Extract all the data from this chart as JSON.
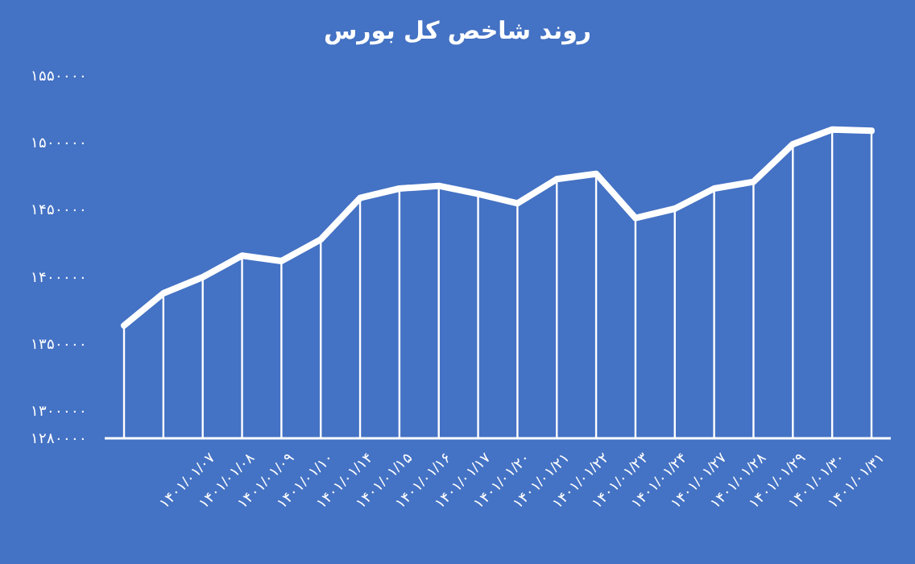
{
  "chart_data": {
    "type": "line",
    "title": "روند شاخص کل بورس",
    "categories": [
      null,
      null,
      "۱۴۰۱/۰۱/۰۷",
      "۱۴۰۱/۰۱/۰۸",
      "۱۴۰۱/۰۱/۰۹",
      "۱۴۰۱/۰۱/۱۰",
      "۱۴۰۱/۰۱/۱۴",
      "۱۴۰۱/۰۱/۱۵",
      "۱۴۰۱/۰۱/۱۶",
      "۱۴۰۱/۰۱/۱۷",
      "۱۴۰۱/۰۱/۲۰",
      "۱۴۰۱/۰۱/۲۱",
      "۱۴۰۱/۰۱/۲۲",
      "۱۴۰۱/۰۱/۲۳",
      "۱۴۰۱/۰۱/۲۴",
      "۱۴۰۱/۰۱/۲۷",
      "۱۴۰۱/۰۱/۲۸",
      "۱۴۰۱/۰۱/۲۹",
      "۱۴۰۱/۰۱/۳۰",
      "۱۴۰۱/۰۱/۳۱"
    ],
    "series": [
      {
        "type": "bar",
        "color": "#ffffff",
        "values": [
          1364000,
          1388000,
          1400000,
          1416000,
          1412000,
          1428000,
          1459000,
          1466000,
          1468000,
          1462000,
          1455000,
          1473000,
          1477000,
          1444000,
          1451000,
          1466000,
          1471000,
          1499000,
          1510000,
          1509000
        ]
      },
      {
        "color": "#ffffff",
        "values": [
          1364000,
          1388000,
          1400000,
          1416000,
          1412000,
          1428000,
          1459000,
          1466000,
          1468000,
          1462000,
          1455000,
          1473000,
          1477000,
          1444000,
          1451000,
          1466000,
          1471000,
          1499000,
          1510000,
          1509000
        ]
      }
    ],
    "ylim": [
      1280000,
      1550000
    ],
    "yticks": [
      {
        "value": 1280000,
        "label": "۱۲۸۰۰۰۰"
      },
      {
        "value": 1300000,
        "label": "۱۳۰۰۰۰۰"
      },
      {
        "value": 1350000,
        "label": "۱۳۵۰۰۰۰"
      },
      {
        "value": 1400000,
        "label": "۱۴۰۰۰۰۰"
      },
      {
        "value": 1450000,
        "label": "۱۴۵۰۰۰۰"
      },
      {
        "value": 1500000,
        "label": "۱۵۰۰۰۰۰"
      },
      {
        "value": 1550000,
        "label": "۱۵۵۰۰۰۰"
      }
    ],
    "grid": false,
    "marker": "none",
    "line_style": "solid"
  }
}
